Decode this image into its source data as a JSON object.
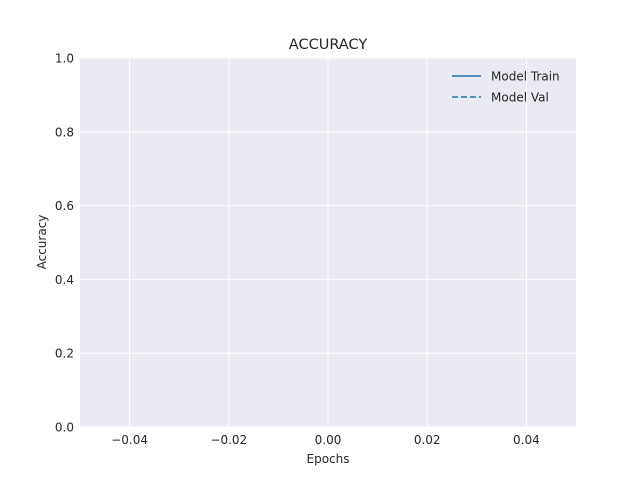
{
  "chart_data": {
    "type": "line",
    "title": "ACCURACY",
    "xlabel": "Epochs",
    "ylabel": "Accuracy",
    "xlim": [
      -0.05,
      0.05
    ],
    "ylim": [
      0.0,
      1.0
    ],
    "x_ticks": [
      -0.04,
      -0.02,
      0.0,
      0.02,
      0.04
    ],
    "x_tick_labels": [
      "−0.04",
      "−0.02",
      "0.00",
      "0.02",
      "0.04"
    ],
    "y_ticks": [
      0.0,
      0.2,
      0.4,
      0.6,
      0.8,
      1.0
    ],
    "y_tick_labels": [
      "0.0",
      "0.2",
      "0.4",
      "0.6",
      "0.8",
      "1.0"
    ],
    "grid": true,
    "legend_position": "top-right",
    "series": [
      {
        "name": "Model Train",
        "color": "#1f6fb4",
        "line_style": "solid",
        "x": [],
        "y": []
      },
      {
        "name": "Model Val",
        "color": "#1f6fb4",
        "line_style": "dashed",
        "x": [],
        "y": []
      }
    ]
  }
}
